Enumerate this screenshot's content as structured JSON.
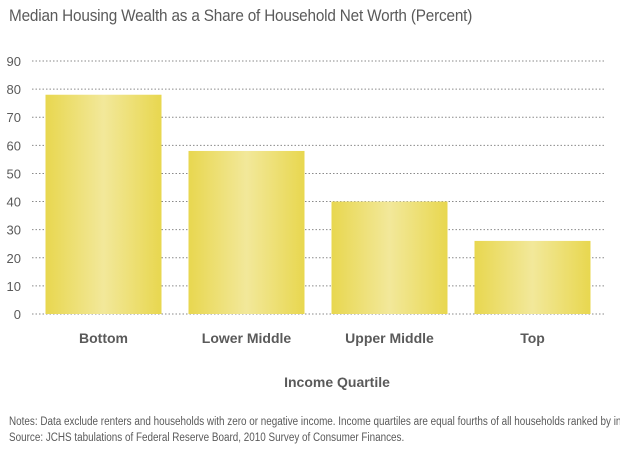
{
  "chart_data": {
    "type": "bar",
    "title": "Median Housing Wealth as a Share of Household Net Worth (Percent)",
    "xlabel": "Income Quartile",
    "ylabel": "",
    "categories": [
      "Bottom",
      "Lower Middle",
      "Upper Middle",
      "Top"
    ],
    "values": [
      78,
      58,
      40,
      26
    ],
    "ylim": [
      0,
      90
    ],
    "yticks": [
      0,
      10,
      20,
      30,
      40,
      50,
      60,
      70,
      80,
      90
    ],
    "grid": "horizontal-dotted",
    "bar_color": "#e8d74f",
    "bar_highlight": "#f2e89a"
  },
  "notes": {
    "line1": "Notes: Data exclude renters and households with zero or negative income. Income quartiles are equal fourths of all households ranked by income.",
    "line2": "Source: JCHS tabulations of Federal Reserve Board, 2010 Survey of Consumer Finances."
  }
}
